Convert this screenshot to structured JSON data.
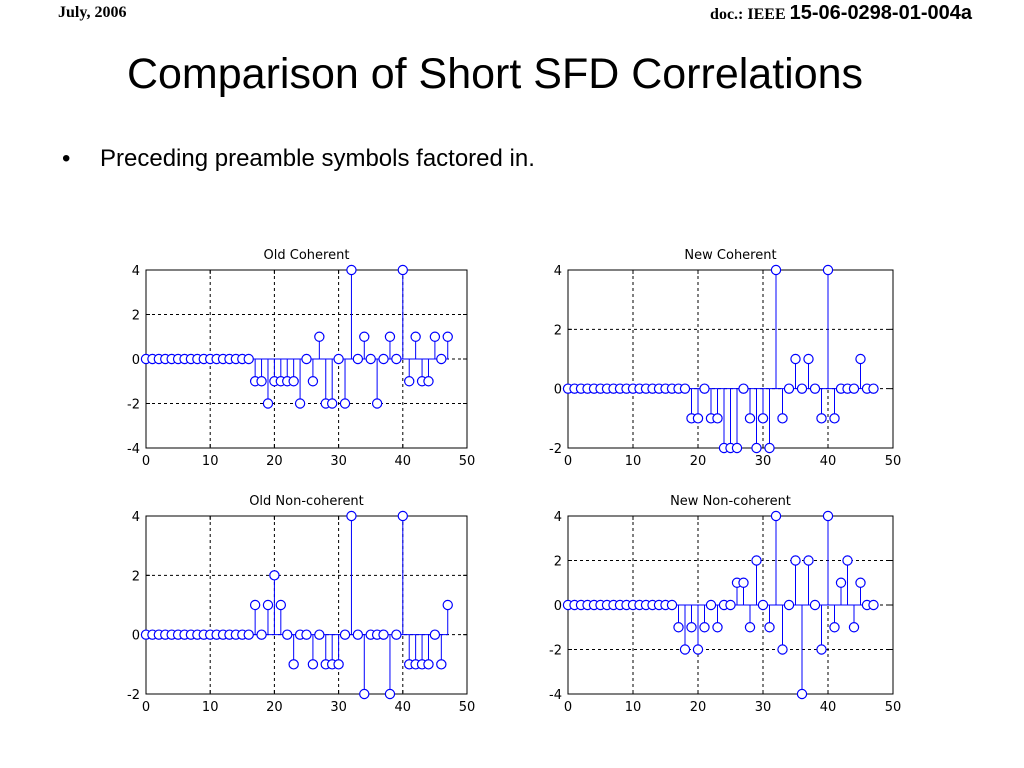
{
  "header": {
    "date": "July, 2006",
    "doc_prefix": "doc.: IEEE ",
    "doc_number": "15-06-0298-01-004a"
  },
  "slide": {
    "title": "Comparison of Short SFD Correlations",
    "bullet_marker": "•",
    "bullet": "Preceding preamble symbols factored in."
  },
  "colors": {
    "stem": "#0000ff",
    "axis": "#000000",
    "grid": "#000000"
  },
  "chart_data": [
    {
      "type": "stem",
      "title": "Old Coherent",
      "xlim": [
        0,
        50
      ],
      "ylim": [
        -4,
        4
      ],
      "xticks": [
        0,
        10,
        20,
        30,
        40,
        50
      ],
      "yticks": [
        -4,
        -2,
        0,
        2,
        4
      ],
      "grid": true,
      "series": [
        {
          "x": [
            0,
            1,
            2,
            3,
            4,
            5,
            6,
            7,
            8,
            9,
            10,
            11,
            12,
            13,
            14,
            15,
            16,
            17,
            18,
            19,
            20,
            21,
            22,
            23,
            24,
            25,
            26,
            27,
            28,
            29,
            30,
            31,
            32,
            33,
            34,
            35,
            36,
            37,
            38,
            39,
            40,
            41,
            42,
            43,
            44,
            45,
            46,
            47
          ],
          "y": [
            0,
            0,
            0,
            0,
            0,
            0,
            0,
            0,
            0,
            0,
            0,
            0,
            0,
            0,
            0,
            0,
            0,
            -1,
            -1,
            -2,
            -1,
            -1,
            -1,
            -1,
            -2,
            0,
            -1,
            1,
            -2,
            -2,
            0,
            -2,
            4,
            0,
            1,
            0,
            -2,
            0,
            1,
            0,
            4,
            -1,
            1,
            -1,
            -1,
            1,
            0,
            1
          ]
        }
      ]
    },
    {
      "type": "stem",
      "title": "New Coherent",
      "xlim": [
        0,
        50
      ],
      "ylim": [
        -2,
        4
      ],
      "xticks": [
        0,
        10,
        20,
        30,
        40,
        50
      ],
      "yticks": [
        -2,
        0,
        2,
        4
      ],
      "grid": true,
      "series": [
        {
          "x": [
            0,
            1,
            2,
            3,
            4,
            5,
            6,
            7,
            8,
            9,
            10,
            11,
            12,
            13,
            14,
            15,
            16,
            17,
            18,
            19,
            20,
            21,
            22,
            23,
            24,
            25,
            26,
            27,
            28,
            29,
            30,
            31,
            32,
            33,
            34,
            35,
            36,
            37,
            38,
            39,
            40,
            41,
            42,
            43,
            44,
            45,
            46,
            47
          ],
          "y": [
            0,
            0,
            0,
            0,
            0,
            0,
            0,
            0,
            0,
            0,
            0,
            0,
            0,
            0,
            0,
            0,
            0,
            0,
            0,
            -1,
            -1,
            0,
            -1,
            -1,
            -2,
            -2,
            -2,
            0,
            -1,
            -2,
            -1,
            -2,
            4,
            -1,
            0,
            1,
            0,
            1,
            0,
            -1,
            4,
            -1,
            0,
            0,
            0,
            1,
            0,
            0
          ]
        }
      ]
    },
    {
      "type": "stem",
      "title": "Old Non-coherent",
      "xlim": [
        0,
        50
      ],
      "ylim": [
        -2,
        4
      ],
      "xticks": [
        0,
        10,
        20,
        30,
        40,
        50
      ],
      "yticks": [
        -2,
        0,
        2,
        4
      ],
      "grid": true,
      "series": [
        {
          "x": [
            0,
            1,
            2,
            3,
            4,
            5,
            6,
            7,
            8,
            9,
            10,
            11,
            12,
            13,
            14,
            15,
            16,
            17,
            18,
            19,
            20,
            21,
            22,
            23,
            24,
            25,
            26,
            27,
            28,
            29,
            30,
            31,
            32,
            33,
            34,
            35,
            36,
            37,
            38,
            39,
            40,
            41,
            42,
            43,
            44,
            45,
            46,
            47
          ],
          "y": [
            0,
            0,
            0,
            0,
            0,
            0,
            0,
            0,
            0,
            0,
            0,
            0,
            0,
            0,
            0,
            0,
            0,
            1,
            0,
            1,
            2,
            1,
            0,
            -1,
            0,
            0,
            -1,
            0,
            -1,
            -1,
            -1,
            0,
            4,
            0,
            -2,
            0,
            0,
            0,
            -2,
            0,
            4,
            -1,
            -1,
            -1,
            -1,
            0,
            -1,
            1
          ]
        }
      ]
    },
    {
      "type": "stem",
      "title": "New Non-coherent",
      "xlim": [
        0,
        50
      ],
      "ylim": [
        -4,
        4
      ],
      "xticks": [
        0,
        10,
        20,
        30,
        40,
        50
      ],
      "yticks": [
        -4,
        -2,
        0,
        2,
        4
      ],
      "grid": true,
      "series": [
        {
          "x": [
            0,
            1,
            2,
            3,
            4,
            5,
            6,
            7,
            8,
            9,
            10,
            11,
            12,
            13,
            14,
            15,
            16,
            17,
            18,
            19,
            20,
            21,
            22,
            23,
            24,
            25,
            26,
            27,
            28,
            29,
            30,
            31,
            32,
            33,
            34,
            35,
            36,
            37,
            38,
            39,
            40,
            41,
            42,
            43,
            44,
            45,
            46,
            47
          ],
          "y": [
            0,
            0,
            0,
            0,
            0,
            0,
            0,
            0,
            0,
            0,
            0,
            0,
            0,
            0,
            0,
            0,
            0,
            -1,
            -2,
            -1,
            -2,
            -1,
            0,
            -1,
            0,
            0,
            1,
            1,
            -1,
            2,
            0,
            -1,
            4,
            -2,
            0,
            2,
            -4,
            2,
            0,
            -2,
            4,
            -1,
            1,
            2,
            -1,
            1,
            0,
            0
          ]
        }
      ]
    }
  ]
}
